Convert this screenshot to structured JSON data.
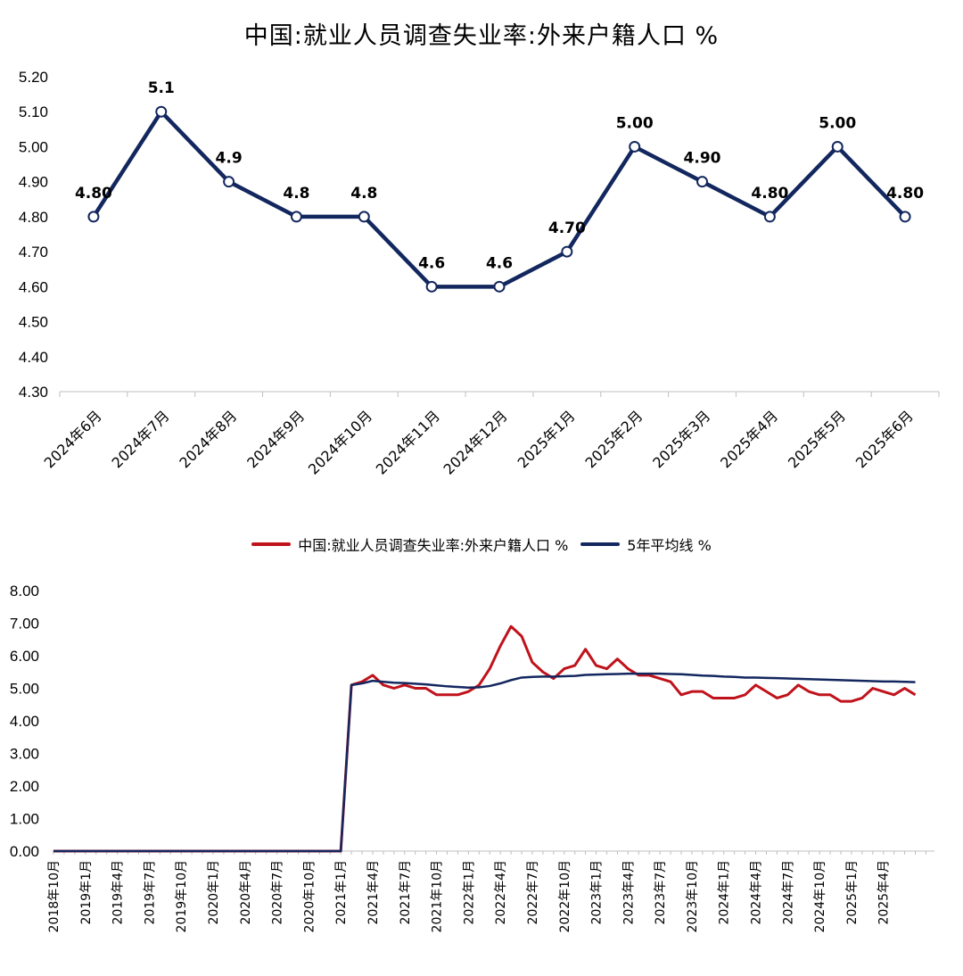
{
  "title": "中国:就业人员调查失业率:外来户籍人口 %",
  "colors": {
    "navy": "#13275f",
    "red": "#c0121b",
    "axis": "#bfbfbf"
  },
  "chart_data": [
    {
      "type": "line",
      "title": "中国:就业人员调查失业率:外来户籍人口 %",
      "categories": [
        "2024年6月",
        "2024年7月",
        "2024年8月",
        "2024年9月",
        "2024年10月",
        "2024年11月",
        "2024年12月",
        "2025年1月",
        "2025年2月",
        "2025年3月",
        "2025年4月",
        "2025年5月",
        "2025年6月"
      ],
      "values": [
        4.8,
        5.1,
        4.9,
        4.8,
        4.8,
        4.6,
        4.6,
        4.7,
        5.0,
        4.9,
        4.8,
        5.0,
        4.8
      ],
      "data_labels": [
        "4.80",
        "5.1",
        "4.9",
        "4.8",
        "4.8",
        "4.6",
        "4.6",
        "4.70",
        "5.00",
        "4.90",
        "4.80",
        "5.00",
        "4.80"
      ],
      "yticks": [
        "4.30",
        "4.40",
        "4.50",
        "4.60",
        "4.70",
        "4.80",
        "4.90",
        "5.00",
        "5.10",
        "5.20"
      ],
      "ylim": [
        4.3,
        5.2
      ],
      "color": "#13275f"
    },
    {
      "type": "line",
      "legend": [
        "中国:就业人员调查失业率:外来户籍人口 %",
        "5年平均线 %"
      ],
      "x_start": "2018年10月",
      "x_ticks": [
        "2018年10月",
        "2019年1月",
        "2019年4月",
        "2019年7月",
        "2019年10月",
        "2020年1月",
        "2020年4月",
        "2020年7月",
        "2020年10月",
        "2021年1月",
        "2021年4月",
        "2021年7月",
        "2021年10月",
        "2022年1月",
        "2022年4月",
        "2022年7月",
        "2022年10月",
        "2023年1月",
        "2023年4月",
        "2023年7月",
        "2023年10月",
        "2024年1月",
        "2024年4月",
        "2024年7月",
        "2024年10月",
        "2025年1月",
        "2025年4月"
      ],
      "yticks": [
        "0.00",
        "1.00",
        "2.00",
        "3.00",
        "4.00",
        "5.00",
        "6.00",
        "7.00",
        "8.00"
      ],
      "ylim": [
        0,
        8
      ],
      "series": [
        {
          "name": "中国:就业人员调查失业率:外来户籍人口 %",
          "color": "#c0121b",
          "values": [
            0,
            0,
            0,
            0,
            0,
            0,
            0,
            0,
            0,
            0,
            0,
            0,
            0,
            0,
            0,
            0,
            0,
            0,
            0,
            0,
            0,
            0,
            0,
            0,
            0,
            0,
            0,
            0,
            5.1,
            5.2,
            5.4,
            5.1,
            5.0,
            5.1,
            5.0,
            5.0,
            4.8,
            4.8,
            4.8,
            4.9,
            5.1,
            5.6,
            6.3,
            6.9,
            6.6,
            5.8,
            5.5,
            5.3,
            5.6,
            5.7,
            6.2,
            5.7,
            5.6,
            5.9,
            5.6,
            5.4,
            5.4,
            5.3,
            5.2,
            4.8,
            4.9,
            4.9,
            4.7,
            4.7,
            4.7,
            4.8,
            5.1,
            4.9,
            4.7,
            4.8,
            5.1,
            4.9,
            4.8,
            4.8,
            4.6,
            4.6,
            4.7,
            5.0,
            4.9,
            4.8,
            5.0,
            4.8
          ]
        },
        {
          "name": "5年平均线 %",
          "color": "#13275f",
          "values": [
            0,
            0,
            0,
            0,
            0,
            0,
            0,
            0,
            0,
            0,
            0,
            0,
            0,
            0,
            0,
            0,
            0,
            0,
            0,
            0,
            0,
            0,
            0,
            0,
            0,
            0,
            0,
            0,
            5.1,
            5.15,
            5.23,
            5.2,
            5.17,
            5.16,
            5.14,
            5.12,
            5.09,
            5.06,
            5.04,
            5.02,
            5.03,
            5.07,
            5.15,
            5.25,
            5.33,
            5.35,
            5.36,
            5.36,
            5.37,
            5.38,
            5.41,
            5.42,
            5.43,
            5.44,
            5.45,
            5.45,
            5.45,
            5.45,
            5.44,
            5.43,
            5.41,
            5.39,
            5.38,
            5.36,
            5.35,
            5.33,
            5.33,
            5.32,
            5.31,
            5.3,
            5.29,
            5.28,
            5.27,
            5.26,
            5.25,
            5.24,
            5.23,
            5.22,
            5.21,
            5.21,
            5.2,
            5.19
          ]
        }
      ]
    }
  ]
}
